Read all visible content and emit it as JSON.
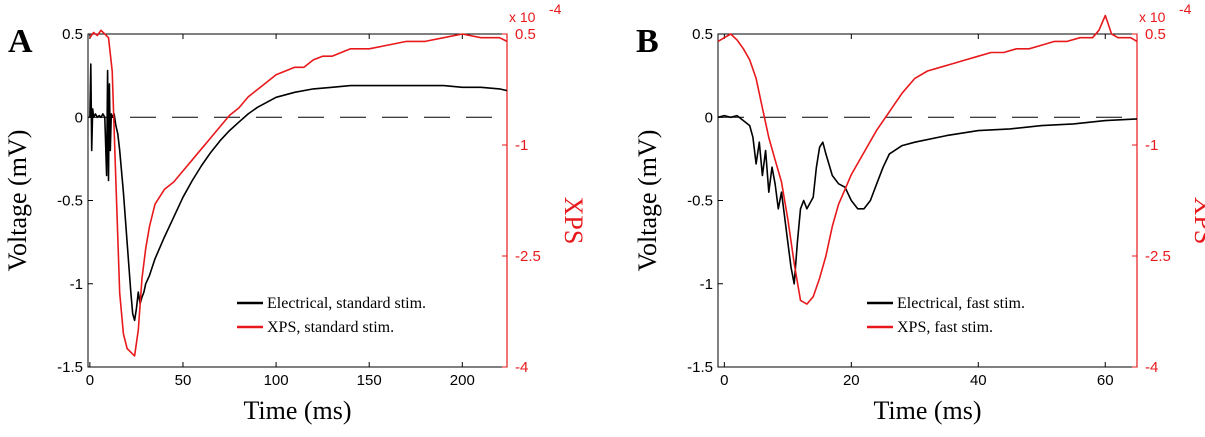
{
  "colors": {
    "electrical": "#000000",
    "xps": "#e8191c",
    "axis": "#000000"
  },
  "chart_data": [
    {
      "type": "line",
      "panel_label": "A",
      "xlabel": "Time (ms)",
      "ylabel": "Voltage (mV)",
      "y2label": "XPS",
      "y2_multiplier": "x 10",
      "y2_multiplier_exp": "-4",
      "xlim": [
        -1,
        224
      ],
      "ylim": [
        -1.5,
        0.5
      ],
      "y2lim": [
        -4,
        0.5
      ],
      "x_ticks": [
        0,
        50,
        100,
        150,
        200
      ],
      "y_ticks": [
        -1.5,
        -1,
        -0.5,
        0,
        0.5
      ],
      "x_tick_labels": [
        "0",
        "50",
        "100",
        "150",
        "200"
      ],
      "y_tick_labels": [
        "-1.5",
        "-1",
        "-0.5",
        "0",
        "0.5"
      ],
      "y2_tick_labels": [
        "-4",
        "-2.5",
        "-1",
        "0.5"
      ],
      "legend": {
        "placement": "bottom-right",
        "entries": [
          "Electrical, standard stim.",
          "XPS, standard stim."
        ]
      },
      "baseline": {
        "style": "dashed",
        "y": 0
      },
      "series": [
        {
          "name": "Electrical, standard stim.",
          "axis": "left",
          "x": [
            0,
            0.5,
            1,
            1.5,
            2,
            3,
            4,
            5,
            6,
            7,
            8,
            9,
            9.5,
            10,
            10.5,
            11,
            11.5,
            12,
            13,
            14,
            15,
            16,
            18,
            20,
            22,
            23,
            24,
            25,
            26,
            27,
            28,
            29,
            30,
            32,
            35,
            40,
            45,
            50,
            55,
            60,
            65,
            70,
            75,
            80,
            85,
            90,
            95,
            100,
            110,
            120,
            130,
            140,
            150,
            160,
            170,
            180,
            190,
            200,
            210,
            220,
            224
          ],
          "y": [
            0,
            0.32,
            -0.2,
            0.05,
            0,
            0.02,
            0,
            0.01,
            0,
            0.02,
            0,
            -0.35,
            0.28,
            -0.38,
            0.2,
            -0.2,
            0.02,
            0,
            0.02,
            -0.05,
            -0.1,
            -0.2,
            -0.45,
            -0.75,
            -1.05,
            -1.18,
            -1.22,
            -1.15,
            -1.05,
            -1.12,
            -1.08,
            -1.05,
            -1.0,
            -0.95,
            -0.85,
            -0.72,
            -0.6,
            -0.48,
            -0.38,
            -0.29,
            -0.21,
            -0.14,
            -0.08,
            -0.03,
            0.02,
            0.06,
            0.09,
            0.12,
            0.15,
            0.17,
            0.18,
            0.19,
            0.19,
            0.19,
            0.19,
            0.19,
            0.19,
            0.18,
            0.18,
            0.17,
            0.16
          ]
        },
        {
          "name": "XPS, standard stim.",
          "axis": "right",
          "x": [
            0,
            2,
            4,
            6,
            8,
            10,
            12,
            14,
            16,
            18,
            20,
            22,
            24,
            26,
            28,
            30,
            32,
            35,
            40,
            45,
            50,
            55,
            60,
            65,
            70,
            75,
            80,
            85,
            90,
            95,
            100,
            105,
            110,
            115,
            120,
            125,
            130,
            135,
            140,
            150,
            160,
            170,
            180,
            190,
            200,
            210,
            220,
            224
          ],
          "y": [
            0.45,
            0.52,
            0.48,
            0.55,
            0.5,
            0.45,
            0.0,
            -1.5,
            -3.0,
            -3.55,
            -3.75,
            -3.8,
            -3.85,
            -3.5,
            -2.8,
            -2.4,
            -2.1,
            -1.8,
            -1.6,
            -1.5,
            -1.35,
            -1.2,
            -1.05,
            -0.9,
            -0.75,
            -0.6,
            -0.5,
            -0.35,
            -0.25,
            -0.15,
            -0.05,
            0.0,
            0.05,
            0.05,
            0.15,
            0.2,
            0.2,
            0.25,
            0.3,
            0.3,
            0.35,
            0.4,
            0.4,
            0.45,
            0.5,
            0.45,
            0.45,
            0.4
          ]
        }
      ]
    },
    {
      "type": "line",
      "panel_label": "B",
      "xlabel": "Time (ms)",
      "ylabel": "Voltage (mV)",
      "y2label": "XPS",
      "y2_multiplier": "x 10",
      "y2_multiplier_exp": "-4",
      "xlim": [
        -1,
        65
      ],
      "ylim": [
        -1.5,
        0.5
      ],
      "y2lim": [
        -4,
        0.5
      ],
      "x_ticks": [
        0,
        20,
        40,
        60
      ],
      "y_ticks": [
        -1.5,
        -1,
        -0.5,
        0,
        0.5
      ],
      "x_tick_labels": [
        "0",
        "20",
        "40",
        "60"
      ],
      "y_tick_labels": [
        "-1.5",
        "-1",
        "-0.5",
        "0",
        "0.5"
      ],
      "y2_tick_labels": [
        "-4",
        "-2.5",
        "-1",
        "0.5"
      ],
      "legend": {
        "placement": "bottom-right",
        "entries": [
          "Electrical, fast stim.",
          "XPS, fast stim."
        ]
      },
      "baseline": {
        "style": "dashed",
        "y": 0
      },
      "series": [
        {
          "name": "Electrical, fast stim.",
          "axis": "left",
          "x": [
            -1,
            0,
            1,
            2,
            3,
            4,
            4.5,
            5,
            5.5,
            6,
            6.5,
            7,
            7.5,
            8,
            8.5,
            9,
            10,
            10.5,
            11,
            11.5,
            12,
            12.5,
            13,
            14,
            14.5,
            15,
            15.5,
            16,
            17,
            18,
            19,
            20,
            21,
            22,
            23,
            24,
            25,
            26,
            28,
            30,
            35,
            40,
            45,
            50,
            55,
            60,
            65
          ],
          "y": [
            0,
            0.01,
            0.0,
            0.01,
            -0.02,
            -0.05,
            -0.12,
            -0.28,
            -0.15,
            -0.35,
            -0.2,
            -0.45,
            -0.3,
            -0.4,
            -0.55,
            -0.45,
            -0.75,
            -0.9,
            -1.0,
            -0.75,
            -0.55,
            -0.5,
            -0.55,
            -0.48,
            -0.3,
            -0.18,
            -0.15,
            -0.22,
            -0.35,
            -0.4,
            -0.42,
            -0.5,
            -0.55,
            -0.55,
            -0.5,
            -0.4,
            -0.3,
            -0.22,
            -0.17,
            -0.15,
            -0.11,
            -0.08,
            -0.07,
            -0.05,
            -0.04,
            -0.02,
            -0.01
          ]
        },
        {
          "name": "XPS, fast stim.",
          "axis": "right",
          "x": [
            -1,
            0,
            1,
            2,
            3,
            4,
            5,
            6,
            7,
            8,
            9,
            10,
            11,
            12,
            13,
            14,
            15,
            16,
            17,
            18,
            19,
            20,
            22,
            24,
            26,
            28,
            30,
            32,
            34,
            36,
            38,
            40,
            42,
            44,
            46,
            48,
            50,
            52,
            54,
            56,
            58,
            59,
            60,
            61,
            62,
            64,
            65
          ],
          "y": [
            0.4,
            0.45,
            0.5,
            0.42,
            0.3,
            0.15,
            -0.1,
            -0.5,
            -0.9,
            -1.2,
            -1.5,
            -2.0,
            -2.6,
            -3.1,
            -3.15,
            -3.05,
            -2.8,
            -2.5,
            -2.1,
            -1.8,
            -1.6,
            -1.4,
            -1.1,
            -0.8,
            -0.55,
            -0.3,
            -0.1,
            0.0,
            0.05,
            0.1,
            0.15,
            0.2,
            0.25,
            0.25,
            0.3,
            0.3,
            0.35,
            0.4,
            0.4,
            0.45,
            0.45,
            0.55,
            0.75,
            0.5,
            0.45,
            0.45,
            0.4
          ]
        }
      ]
    }
  ]
}
